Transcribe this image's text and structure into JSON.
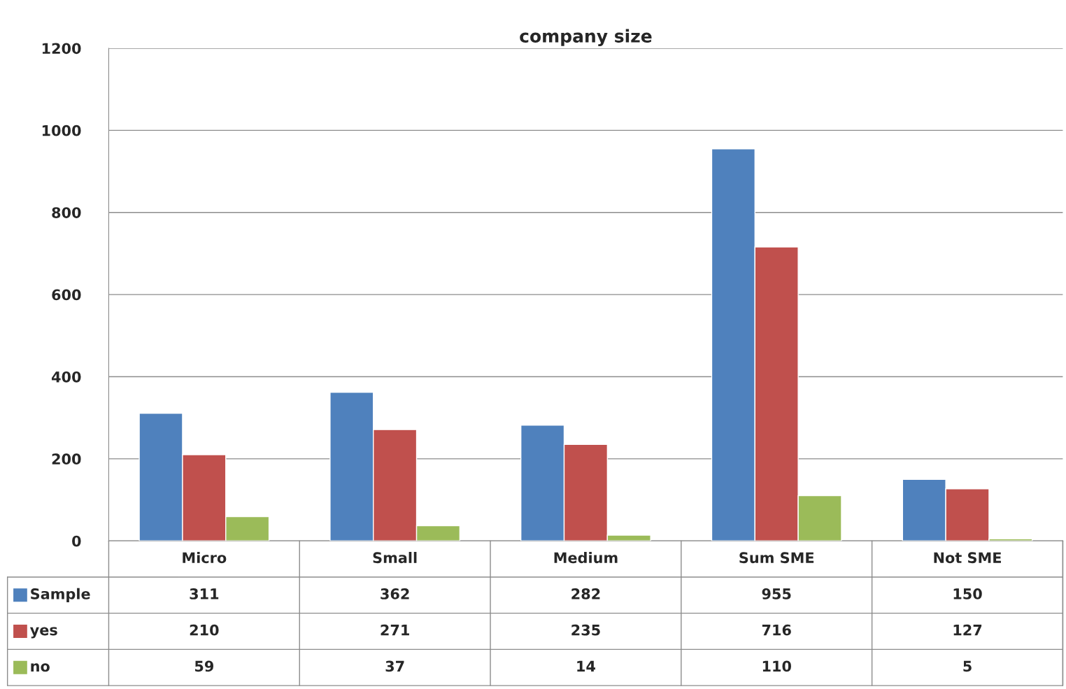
{
  "chart_data": {
    "type": "bar",
    "title": "company size",
    "categories": [
      "Micro",
      "Small",
      "Medium",
      "Sum SME",
      "Not SME"
    ],
    "series": [
      {
        "name": "Sample",
        "color": "#4f81bd",
        "values": [
          311,
          362,
          282,
          955,
          150
        ]
      },
      {
        "name": "yes",
        "color": "#c0504d",
        "values": [
          210,
          271,
          235,
          716,
          127
        ]
      },
      {
        "name": "no",
        "color": "#9bbb59",
        "values": [
          59,
          37,
          14,
          110,
          5
        ]
      }
    ],
    "ylim": [
      0,
      1200
    ],
    "yticks": [
      0,
      200,
      400,
      600,
      800,
      1000,
      1200
    ],
    "grid": "y",
    "data_labels": true,
    "legend": "bottom left"
  }
}
